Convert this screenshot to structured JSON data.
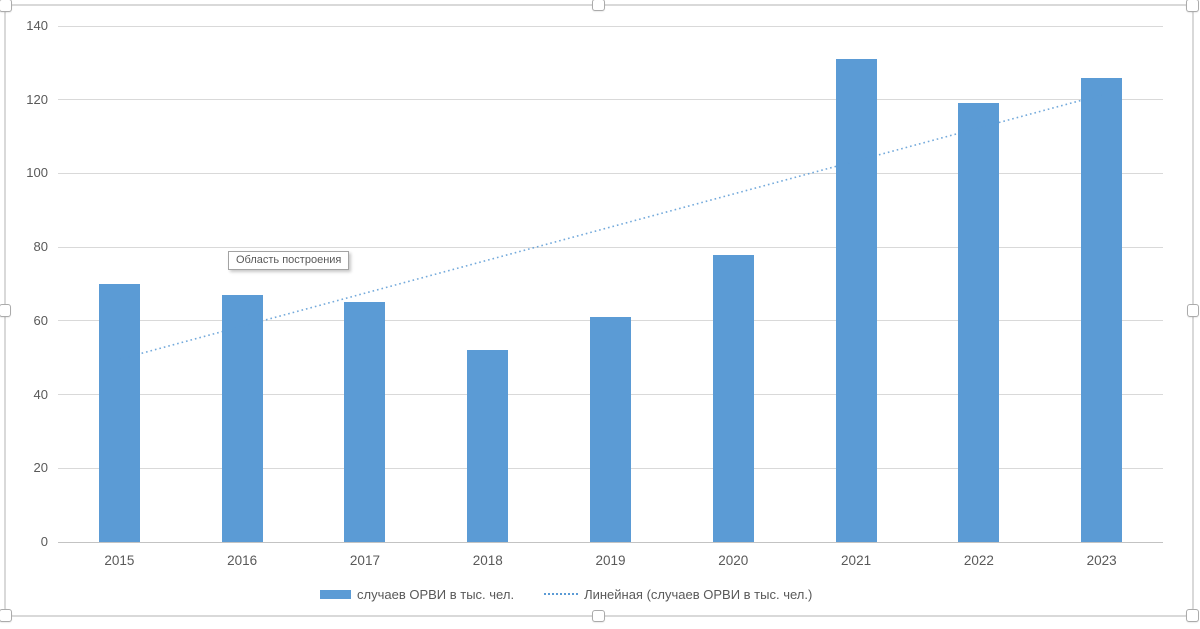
{
  "chart_data": {
    "type": "bar",
    "title": "",
    "categories": [
      "2015",
      "2016",
      "2017",
      "2018",
      "2019",
      "2020",
      "2021",
      "2022",
      "2023"
    ],
    "series": [
      {
        "name": "случаев ОРВИ в тыс. чел.",
        "values": [
          70,
          67,
          65,
          52,
          61,
          78,
          131,
          119,
          126
        ]
      }
    ],
    "trendline": {
      "name": "Линейная (случаев ОРВИ в тыс. чел.)",
      "kind": "linear"
    },
    "xlabel": "",
    "ylabel": "",
    "ylim": [
      0,
      140
    ],
    "y_ticks": [
      0,
      20,
      40,
      60,
      80,
      100,
      120,
      140
    ],
    "grid": true,
    "legend_position": "bottom",
    "bar_color": "#5b9bd5",
    "trend_color": "#5b9bd5",
    "gridline_color": "#d9d9d9"
  },
  "tooltip": {
    "text": "Область построения"
  },
  "legend": {
    "items": [
      {
        "label": "случаев ОРВИ в тыс. чел.",
        "swatch": "bar"
      },
      {
        "label": "Линейная (случаев ОРВИ в тыс. чел.)",
        "swatch": "dotted-line"
      }
    ]
  }
}
